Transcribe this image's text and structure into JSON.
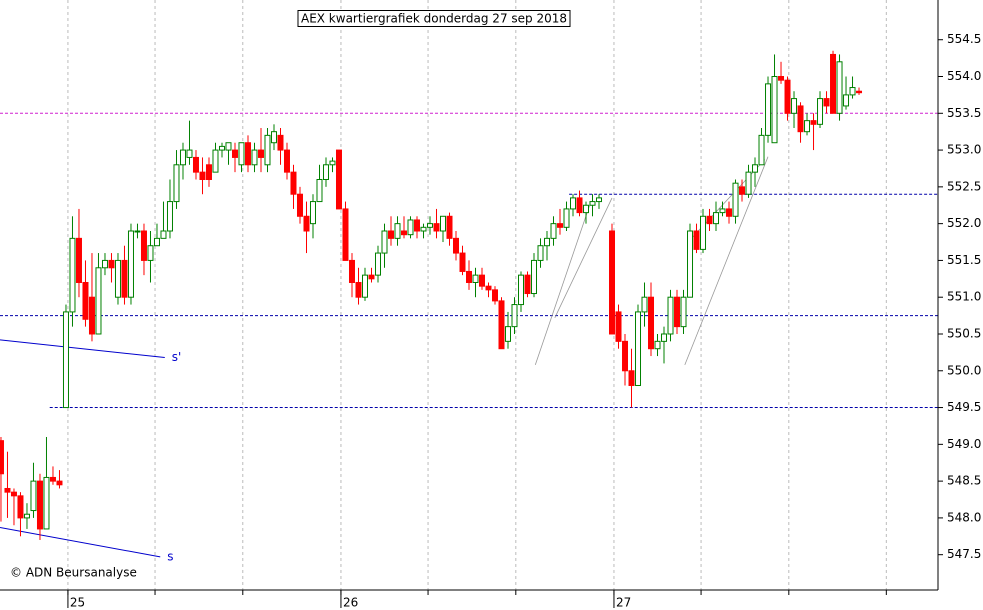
{
  "chart_data": {
    "type": "candlestick",
    "title": "AEX kwartiergrafiek donderdag 27 sep 2018",
    "credit": "© ADN Beursanalyse",
    "up_color": "#008000",
    "down_color": "#ff0000",
    "xlim": [
      -0.15,
      144.15
    ],
    "xticks": [
      {
        "value": 10.3,
        "label": "25"
      },
      {
        "value": 52.3,
        "label": "26"
      },
      {
        "value": 94.3,
        "label": "27"
      }
    ],
    "xgrid": [
      10.3,
      23.7,
      37.2,
      52.3,
      65.7,
      79.2,
      94.3,
      107.7,
      121.2,
      136.2
    ],
    "ylim": [
      547.02,
      555.04
    ],
    "yticks": [
      {
        "value": 547.5,
        "label": "547.5"
      },
      {
        "value": 548,
        "label": "548.0"
      },
      {
        "value": 548.5,
        "label": "548.5"
      },
      {
        "value": 549,
        "label": "549.0"
      },
      {
        "value": 549.5,
        "label": "549.5"
      },
      {
        "value": 550,
        "label": "550.0"
      },
      {
        "value": 550.5,
        "label": "550.5"
      },
      {
        "value": 551,
        "label": "551.0"
      },
      {
        "value": 551.5,
        "label": "551.5"
      },
      {
        "value": 552,
        "label": "552.0"
      },
      {
        "value": 552.5,
        "label": "552.5"
      },
      {
        "value": 553,
        "label": "553.0"
      },
      {
        "value": 553.5,
        "label": "553.5"
      },
      {
        "value": 554,
        "label": "554.0"
      },
      {
        "value": 554.5,
        "label": "554.5"
      }
    ],
    "levels": [
      {
        "value": 553.5,
        "from": -0.15,
        "color": "#d020d0"
      },
      {
        "value": 552.4,
        "from": 87.4,
        "color": "#0000aa"
      },
      {
        "value": 550.75,
        "from": -0.15,
        "color": "#0000aa"
      },
      {
        "value": 549.5,
        "from": 7.5,
        "color": "#0000aa"
      }
    ],
    "trendlines": [
      {
        "label": "s'",
        "color": "#0000cc",
        "points": [
          [
            -0.15,
            550.42
          ],
          [
            25.2,
            550.18
          ]
        ]
      },
      {
        "label": "s",
        "color": "#0000cc",
        "points": [
          [
            -0.15,
            547.87
          ],
          [
            24.5,
            547.47
          ]
        ]
      }
    ],
    "channels": [
      [
        [
          82.2,
          550.08
        ],
        [
          90.6,
          552.26
        ]
      ],
      [
        [
          85.2,
          550.72
        ],
        [
          94.0,
          552.35
        ]
      ],
      [
        [
          105.2,
          550.08
        ],
        [
          118.0,
          552.91
        ]
      ],
      [
        [
          106.0,
          551.78
        ],
        [
          117.5,
          552.87
        ]
      ]
    ],
    "ohlc": [
      [
        549.05,
        549.1,
        547.95,
        548.6
      ],
      [
        548.4,
        548.9,
        548.0,
        548.35
      ],
      [
        548.35,
        548.4,
        547.9,
        548.3
      ],
      [
        548.3,
        548.35,
        547.75,
        548.0
      ],
      [
        548.0,
        548.2,
        547.85,
        548.05
      ],
      [
        548.1,
        548.75,
        548.0,
        548.5
      ],
      [
        548.5,
        548.6,
        547.7,
        547.85
      ],
      [
        547.85,
        549.1,
        547.85,
        548.55
      ],
      [
        548.55,
        548.7,
        548.45,
        548.5
      ],
      [
        548.5,
        548.65,
        548.4,
        548.45
      ],
      [
        549.5,
        550.9,
        549.5,
        550.8
      ],
      [
        550.8,
        552.1,
        550.6,
        551.8
      ],
      [
        551.8,
        552.2,
        551.0,
        551.2
      ],
      [
        551.2,
        551.5,
        550.6,
        550.7
      ],
      [
        551.0,
        551.6,
        550.4,
        550.5
      ],
      [
        550.5,
        551.6,
        550.5,
        551.4
      ],
      [
        551.4,
        551.6,
        551.3,
        551.5
      ],
      [
        551.5,
        551.6,
        551.2,
        551.4
      ],
      [
        551.0,
        551.6,
        550.9,
        551.5
      ],
      [
        551.5,
        551.7,
        550.9,
        551.0
      ],
      [
        551.0,
        552.0,
        550.9,
        551.9
      ],
      [
        551.9,
        552.0,
        551.8,
        551.9
      ],
      [
        551.9,
        552.0,
        551.3,
        551.5
      ],
      [
        551.5,
        551.9,
        551.2,
        551.7
      ],
      [
        551.7,
        552.0,
        551.7,
        551.8
      ],
      [
        551.8,
        552.3,
        551.8,
        551.9
      ],
      [
        551.9,
        552.6,
        551.8,
        552.3
      ],
      [
        552.3,
        553.0,
        552.2,
        552.8
      ],
      [
        552.8,
        553.1,
        552.6,
        553.0
      ],
      [
        552.9,
        553.4,
        552.8,
        553.0
      ],
      [
        552.9,
        553.0,
        552.6,
        552.7
      ],
      [
        552.7,
        552.9,
        552.4,
        552.6
      ],
      [
        552.8,
        552.9,
        552.5,
        552.6
      ],
      [
        552.7,
        553.1,
        552.7,
        553.0
      ],
      [
        553.0,
        553.1,
        552.9,
        553.05
      ],
      [
        553.0,
        553.1,
        552.8,
        553.1
      ],
      [
        553.0,
        553.1,
        552.7,
        552.9
      ],
      [
        552.8,
        553.1,
        552.7,
        553.1
      ],
      [
        553.1,
        553.2,
        552.7,
        552.8
      ],
      [
        552.8,
        553.1,
        552.7,
        553.0
      ],
      [
        553.0,
        553.3,
        552.7,
        552.9
      ],
      [
        552.8,
        553.3,
        552.7,
        553.2
      ],
      [
        553.1,
        553.35,
        553.0,
        553.25
      ],
      [
        553.2,
        553.3,
        552.8,
        553.0
      ],
      [
        553.0,
        553.1,
        552.6,
        552.7
      ],
      [
        552.7,
        552.8,
        552.2,
        552.4
      ],
      [
        552.4,
        552.5,
        552.0,
        552.1
      ],
      [
        552.1,
        552.3,
        551.6,
        551.9
      ],
      [
        552.0,
        552.4,
        551.8,
        552.3
      ],
      [
        552.3,
        552.8,
        552.3,
        552.6
      ],
      [
        552.6,
        552.9,
        552.5,
        552.8
      ],
      [
        552.8,
        552.9,
        552.7,
        552.85
      ],
      [
        553.0,
        553.0,
        552.2,
        552.2
      ],
      [
        552.2,
        552.3,
        551.5,
        551.5
      ],
      [
        551.5,
        551.6,
        551.0,
        551.2
      ],
      [
        551.2,
        551.4,
        550.9,
        551.0
      ],
      [
        551.0,
        551.4,
        550.95,
        551.3
      ],
      [
        551.3,
        551.4,
        551.2,
        551.25
      ],
      [
        551.3,
        551.7,
        551.2,
        551.6
      ],
      [
        551.6,
        552.0,
        551.4,
        551.9
      ],
      [
        551.9,
        552.1,
        551.7,
        551.8
      ],
      [
        551.8,
        552.1,
        551.7,
        552.0
      ],
      [
        551.9,
        552.1,
        551.8,
        551.85
      ],
      [
        551.85,
        552.1,
        551.8,
        552.05
      ],
      [
        552.05,
        552.1,
        551.8,
        551.9
      ],
      [
        551.9,
        552.0,
        551.8,
        551.95
      ],
      [
        551.95,
        552.1,
        551.85,
        552.0
      ],
      [
        552.0,
        552.2,
        551.8,
        551.9
      ],
      [
        551.9,
        552.1,
        551.75,
        552.1
      ],
      [
        552.1,
        552.15,
        551.7,
        551.8
      ],
      [
        551.8,
        551.9,
        551.5,
        551.6
      ],
      [
        551.6,
        551.7,
        551.3,
        551.35
      ],
      [
        551.35,
        551.5,
        551.1,
        551.2
      ],
      [
        551.2,
        551.4,
        551.0,
        551.3
      ],
      [
        551.3,
        551.4,
        551.1,
        551.15
      ],
      [
        551.15,
        551.2,
        551.0,
        551.1
      ],
      [
        551.1,
        551.15,
        550.9,
        550.95
      ],
      [
        550.95,
        551.0,
        550.3,
        550.3
      ],
      [
        550.4,
        550.8,
        550.3,
        550.6
      ],
      [
        550.6,
        551.0,
        550.5,
        550.9
      ],
      [
        550.9,
        551.35,
        550.8,
        551.3
      ],
      [
        551.3,
        551.35,
        551.0,
        551.05
      ],
      [
        551.05,
        551.6,
        551.0,
        551.5
      ],
      [
        551.5,
        551.8,
        551.4,
        551.7
      ],
      [
        551.7,
        551.9,
        551.5,
        551.8
      ],
      [
        551.8,
        552.1,
        551.7,
        552.0
      ],
      [
        552.0,
        552.2,
        551.85,
        551.95
      ],
      [
        551.95,
        552.3,
        551.9,
        552.2
      ],
      [
        552.2,
        552.4,
        552.1,
        552.35
      ],
      [
        552.35,
        552.45,
        552.1,
        552.15
      ],
      [
        552.15,
        552.3,
        552.0,
        552.25
      ],
      [
        552.25,
        552.4,
        552.1,
        552.3
      ],
      [
        552.3,
        552.4,
        552.2,
        552.35
      ],
      null,
      [
        551.9,
        552.0,
        550.5,
        550.5
      ],
      [
        550.8,
        550.9,
        550.3,
        550.4
      ],
      [
        550.4,
        550.5,
        549.8,
        550.0
      ],
      [
        550.0,
        550.3,
        549.5,
        549.8
      ],
      [
        549.8,
        550.9,
        549.8,
        550.8
      ],
      [
        550.8,
        551.2,
        550.6,
        551.0
      ],
      [
        551.0,
        551.2,
        550.2,
        550.3
      ],
      [
        550.3,
        550.5,
        550.2,
        550.4
      ],
      [
        550.4,
        550.6,
        550.1,
        550.5
      ],
      [
        550.5,
        551.1,
        550.4,
        551.0
      ],
      [
        551.0,
        551.1,
        550.5,
        550.6
      ],
      [
        550.6,
        551.1,
        550.5,
        551.0
      ],
      [
        551.0,
        552.0,
        551.0,
        551.9
      ],
      [
        551.9,
        552.0,
        551.6,
        551.65
      ],
      [
        551.65,
        552.2,
        551.6,
        552.1
      ],
      [
        552.1,
        552.2,
        551.9,
        552.0
      ],
      [
        552.0,
        552.3,
        551.9,
        552.15
      ],
      [
        552.15,
        552.3,
        552.1,
        552.2
      ],
      [
        552.2,
        552.3,
        552.0,
        552.1
      ],
      [
        552.1,
        552.6,
        552.0,
        552.55
      ],
      [
        552.5,
        552.6,
        552.3,
        552.4
      ],
      [
        552.4,
        552.8,
        552.35,
        552.7
      ],
      [
        552.7,
        552.9,
        552.5,
        552.8
      ],
      [
        552.8,
        553.3,
        552.8,
        553.2
      ],
      [
        553.2,
        554.0,
        553.1,
        553.9
      ],
      [
        553.1,
        554.3,
        553.1,
        554.0
      ],
      [
        554.0,
        554.2,
        553.9,
        553.95
      ],
      [
        553.95,
        554.0,
        553.4,
        553.5
      ],
      [
        553.5,
        553.8,
        553.3,
        553.7
      ],
      [
        553.6,
        553.65,
        553.1,
        553.25
      ],
      [
        553.25,
        553.5,
        553.2,
        553.4
      ],
      [
        553.4,
        553.5,
        553.0,
        553.35
      ],
      [
        553.35,
        553.8,
        553.3,
        553.7
      ],
      [
        553.7,
        553.8,
        553.5,
        553.6
      ],
      [
        554.3,
        554.35,
        553.5,
        553.5
      ],
      [
        553.5,
        554.3,
        553.4,
        554.2
      ],
      [
        553.6,
        554.0,
        553.55,
        553.75
      ],
      [
        553.75,
        554.0,
        553.7,
        553.85
      ],
      [
        553.8,
        553.85,
        553.75,
        553.78
      ]
    ]
  }
}
